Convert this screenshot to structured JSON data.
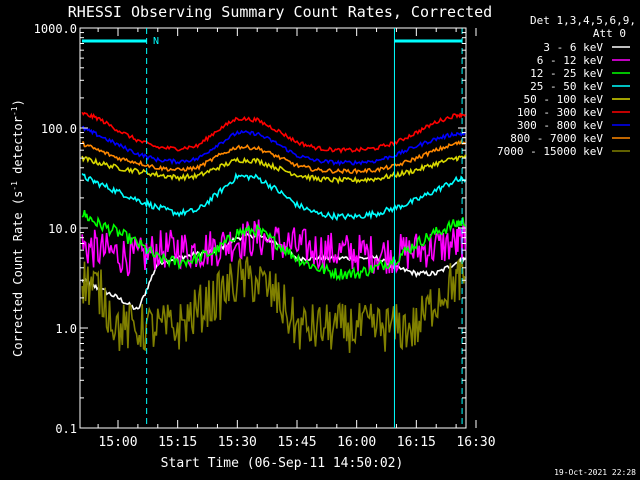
{
  "chart_data": {
    "type": "line",
    "title": "RHESSI Observing Summary Count Rates, Corrected",
    "xlabel": "Start Time (06-Sep-11 14:50:02)",
    "ylabel_main": "Corrected Count Rate (s",
    "ylabel_sup1": "-1",
    "ylabel_mid": " detector",
    "ylabel_sup2": "-1",
    "ylabel_end": ")",
    "yscale": "log",
    "ylim": [
      0.1,
      1000
    ],
    "xlim_minutes": [
      -8,
      38.5
    ],
    "grid": false,
    "y_ticks": [
      {
        "value": 1000,
        "label": "1000.0"
      },
      {
        "value": 100,
        "label": "100.0"
      },
      {
        "value": 10,
        "label": "10.0"
      },
      {
        "value": 1,
        "label": "1.0"
      },
      {
        "value": 0.1,
        "label": "0.1"
      }
    ],
    "x_ticks": [
      {
        "minute": 0,
        "label": "15:00"
      },
      {
        "minute": 15,
        "label": "15:15"
      },
      {
        "minute": 30,
        "label": "15:30"
      },
      {
        "minute": 45,
        "label": "15:45"
      },
      {
        "minute": 60,
        "label": "16:00"
      },
      {
        "minute": 75,
        "label": "16:15"
      },
      {
        "minute": 90,
        "label": "16:30"
      }
    ],
    "x_tick_minutes_per_unit": 15,
    "legend_header": [
      "Det 1,3,4,5,6,9,",
      "Att 0"
    ],
    "legend_placement": "top-right outside",
    "annotations": {
      "night_label": "N",
      "night_start": 7.2,
      "night_end_marker": 69.5,
      "saa_end": 86.5
    },
    "series": [
      {
        "name": "3 - 6 keV",
        "color": "#ffffff",
        "x": [
          -9,
          -5,
          0,
          5,
          10,
          15,
          20,
          25,
          30,
          35,
          40,
          45,
          50,
          55,
          60,
          65,
          70,
          75,
          80,
          85,
          88
        ],
        "y": [
          3.0,
          2.5,
          2.0,
          1.5,
          4.5,
          5.0,
          5.5,
          6.0,
          8.0,
          8.5,
          7.0,
          5.0,
          5.0,
          5.0,
          5.0,
          5.0,
          4.0,
          3.5,
          3.5,
          4.5,
          5.0
        ]
      },
      {
        "name": "6 - 12 keV",
        "color": "#ff00ff",
        "x": [
          -9,
          -5,
          0,
          5,
          10,
          15,
          20,
          25,
          30,
          35,
          40,
          45,
          50,
          55,
          60,
          65,
          70,
          75,
          80,
          85,
          88
        ],
        "y": [
          6.5,
          6.0,
          5.5,
          5.0,
          6.0,
          6.2,
          6.0,
          6.5,
          7.5,
          8.0,
          7.2,
          6.5,
          6.0,
          5.8,
          5.6,
          5.5,
          5.5,
          6.0,
          6.5,
          7.0,
          7.2
        ]
      },
      {
        "name": "12 - 25 keV",
        "color": "#00ff00",
        "x": [
          -9,
          -5,
          0,
          5,
          10,
          15,
          20,
          25,
          30,
          35,
          40,
          45,
          50,
          55,
          60,
          65,
          70,
          75,
          80,
          85,
          88
        ],
        "y": [
          14,
          11,
          9,
          7,
          5,
          4.5,
          5,
          6,
          9,
          9.5,
          7,
          5,
          4,
          3.5,
          3.5,
          4,
          5,
          7,
          9,
          11,
          12
        ]
      },
      {
        "name": "25 - 50 keV",
        "color": "#00ffff",
        "x": [
          -9,
          -5,
          0,
          5,
          10,
          15,
          20,
          25,
          30,
          35,
          40,
          45,
          50,
          55,
          60,
          65,
          70,
          75,
          80,
          85,
          88
        ],
        "y": [
          33,
          28,
          23,
          19,
          16,
          14,
          15,
          22,
          33,
          32,
          24,
          17,
          14,
          13,
          13,
          14,
          16,
          19,
          24,
          30,
          31
        ]
      },
      {
        "name": "50 - 100 keV",
        "color": "#d8d800",
        "x": [
          -9,
          -5,
          0,
          5,
          10,
          15,
          20,
          25,
          30,
          35,
          40,
          45,
          50,
          55,
          60,
          65,
          70,
          75,
          80,
          85,
          88
        ],
        "y": [
          50,
          45,
          40,
          37,
          34,
          32,
          33,
          40,
          48,
          47,
          40,
          34,
          31,
          30,
          30,
          31,
          34,
          38,
          44,
          50,
          52
        ]
      },
      {
        "name": "100 - 300 keV",
        "color": "#ff0000",
        "x": [
          -9,
          -5,
          0,
          5,
          10,
          15,
          20,
          25,
          30,
          35,
          40,
          45,
          50,
          55,
          60,
          65,
          70,
          75,
          80,
          85,
          88
        ],
        "y": [
          140,
          125,
          95,
          75,
          64,
          62,
          66,
          95,
          125,
          120,
          95,
          72,
          63,
          60,
          60,
          63,
          72,
          90,
          115,
          135,
          138
        ]
      },
      {
        "name": "300 - 800 keV",
        "color": "#0000ff",
        "x": [
          -9,
          -5,
          0,
          5,
          10,
          15,
          20,
          25,
          30,
          35,
          40,
          45,
          50,
          55,
          60,
          65,
          70,
          75,
          80,
          85,
          88
        ],
        "y": [
          100,
          85,
          68,
          55,
          48,
          46,
          49,
          68,
          90,
          88,
          70,
          53,
          47,
          45,
          45,
          47,
          54,
          66,
          78,
          88,
          86
        ]
      },
      {
        "name": "800 - 7000 keV",
        "color": "#ff8800",
        "x": [
          -9,
          -5,
          0,
          5,
          10,
          15,
          20,
          25,
          30,
          35,
          40,
          45,
          50,
          55,
          60,
          65,
          70,
          75,
          80,
          85,
          88
        ],
        "y": [
          70,
          60,
          50,
          45,
          40,
          38,
          40,
          52,
          65,
          63,
          52,
          42,
          38,
          37,
          37,
          38,
          42,
          50,
          60,
          70,
          72
        ]
      },
      {
        "name": "7000 - 15000 keV",
        "color": "#808000",
        "x": [
          -9,
          -5,
          0,
          5,
          10,
          15,
          20,
          25,
          30,
          35,
          40,
          45,
          50,
          55,
          60,
          65,
          70,
          75,
          80,
          85,
          88
        ],
        "y": [
          3.0,
          2.5,
          1.0,
          1.0,
          1.0,
          1.0,
          1.5,
          2.0,
          3.0,
          3.0,
          2.0,
          1.0,
          1.0,
          1.0,
          1.0,
          1.0,
          1.0,
          1.0,
          2.0,
          3.0,
          3.0
        ]
      }
    ]
  },
  "footer": {
    "timestamp": "19-Oct-2021 22:28"
  }
}
